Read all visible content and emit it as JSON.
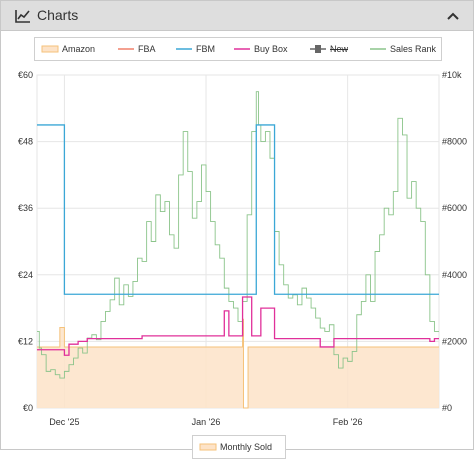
{
  "panel": {
    "title": "Charts",
    "icon": "line-chart-icon",
    "collapse_icon": "chevron-up-icon"
  },
  "legend": [
    {
      "key": "amazon",
      "label": "Amazon",
      "color": "#f5c27a",
      "fill": "#fde3c8",
      "off": false
    },
    {
      "key": "fba",
      "label": "FBA",
      "color": "#f0806a",
      "off": false
    },
    {
      "key": "fbm",
      "label": "FBM",
      "color": "#3ba7d6",
      "off": false
    },
    {
      "key": "buybox",
      "label": "Buy Box",
      "color": "#e0309a",
      "off": false
    },
    {
      "key": "new",
      "label": "New",
      "color": "#666666",
      "off": true
    },
    {
      "key": "salesrank",
      "label": "Sales Rank",
      "color": "#8bc48a",
      "off": false
    }
  ],
  "legend2": {
    "label": "Monthly Sold",
    "color": "#f5c27a"
  },
  "chart_data": {
    "type": "line",
    "y_left": {
      "ticks": [
        "€0",
        "€12",
        "€24",
        "€36",
        "€48",
        "€60"
      ],
      "values": [
        0,
        12,
        24,
        36,
        48,
        60
      ],
      "ylim": [
        0,
        60
      ]
    },
    "y_right": {
      "ticks": [
        "#0",
        "#2000",
        "#4000",
        "#6000",
        "#8000",
        "#10k"
      ],
      "values": [
        0,
        2000,
        4000,
        6000,
        8000,
        10000
      ],
      "ylim": [
        0,
        10000
      ]
    },
    "x_ticks": [
      {
        "label": "Dec '25",
        "day": 6
      },
      {
        "label": "Jan '26",
        "day": 37
      },
      {
        "label": "Feb '26",
        "day": 68
      }
    ],
    "xlim": [
      0,
      88
    ],
    "grid": true,
    "series": [
      {
        "key": "amazon",
        "axis": "left",
        "step": true,
        "points": [
          [
            0,
            11
          ],
          [
            5,
            11
          ],
          [
            5,
            14.5
          ],
          [
            6,
            14.5
          ],
          [
            6,
            11
          ],
          [
            45,
            11
          ],
          [
            45,
            16
          ],
          [
            45.2,
            16
          ],
          [
            45.2,
            0
          ],
          [
            46.2,
            0
          ],
          [
            46.2,
            11
          ],
          [
            88,
            11
          ]
        ]
      },
      {
        "key": "fbm",
        "axis": "left",
        "step": true,
        "points": [
          [
            0,
            51
          ],
          [
            6,
            51
          ],
          [
            6,
            20.5
          ],
          [
            48,
            20.5
          ],
          [
            48,
            51
          ],
          [
            52,
            51
          ],
          [
            52,
            20.5
          ],
          [
            88,
            20.5
          ]
        ]
      },
      {
        "key": "buybox",
        "axis": "left",
        "step": true,
        "points": [
          [
            0,
            10.5
          ],
          [
            6,
            10.5
          ],
          [
            6,
            9.5
          ],
          [
            7,
            9.5
          ],
          [
            7,
            11.5
          ],
          [
            9,
            11.5
          ],
          [
            9,
            12
          ],
          [
            11,
            12
          ],
          [
            11,
            12.5
          ],
          [
            23,
            12.5
          ],
          [
            23,
            13
          ],
          [
            41,
            13
          ],
          [
            41,
            17.5
          ],
          [
            42,
            17.5
          ],
          [
            42,
            13
          ],
          [
            45,
            13
          ],
          [
            45,
            20
          ],
          [
            47,
            20
          ],
          [
            47,
            13
          ],
          [
            49,
            13
          ],
          [
            49,
            18
          ],
          [
            52,
            18
          ],
          [
            52,
            12.5
          ],
          [
            62,
            12.5
          ],
          [
            62,
            11
          ],
          [
            65,
            11
          ],
          [
            65,
            12.5
          ],
          [
            86,
            12.5
          ],
          [
            86,
            12
          ],
          [
            87,
            12
          ],
          [
            87,
            12.5
          ],
          [
            88,
            12.5
          ]
        ]
      },
      {
        "key": "salesrank",
        "axis": "right",
        "step": true,
        "points": [
          [
            0,
            2300
          ],
          [
            0.5,
            1800
          ],
          [
            1,
            1600
          ],
          [
            2,
            1100
          ],
          [
            3,
            1150
          ],
          [
            4,
            1000
          ],
          [
            5,
            900
          ],
          [
            6,
            1100
          ],
          [
            7,
            1300
          ],
          [
            8,
            1500
          ],
          [
            9,
            1800
          ],
          [
            10,
            1650
          ],
          [
            11,
            2100
          ],
          [
            12,
            2200
          ],
          [
            13,
            2050
          ],
          [
            14,
            2600
          ],
          [
            15,
            2900
          ],
          [
            16,
            3250
          ],
          [
            17,
            3900
          ],
          [
            18,
            3100
          ],
          [
            19,
            3700
          ],
          [
            20,
            3350
          ],
          [
            21,
            3800
          ],
          [
            22,
            4500
          ],
          [
            23,
            4400
          ],
          [
            24,
            5600
          ],
          [
            25,
            5000
          ],
          [
            26,
            6400
          ],
          [
            27,
            5900
          ],
          [
            28,
            6200
          ],
          [
            29,
            5200
          ],
          [
            30,
            4800
          ],
          [
            31,
            7000
          ],
          [
            32,
            8300
          ],
          [
            33,
            7100
          ],
          [
            34,
            5700
          ],
          [
            35,
            6200
          ],
          [
            36,
            7300
          ],
          [
            37,
            6500
          ],
          [
            38,
            5600
          ],
          [
            39,
            4900
          ],
          [
            40,
            4500
          ],
          [
            41,
            3600
          ],
          [
            42,
            3200
          ],
          [
            43,
            3000
          ],
          [
            44,
            2600
          ],
          [
            45,
            3200
          ],
          [
            46,
            5800
          ],
          [
            47,
            8300
          ],
          [
            48,
            9500
          ],
          [
            48.5,
            8500
          ],
          [
            49,
            8000
          ],
          [
            50,
            8300
          ],
          [
            51,
            7500
          ],
          [
            52,
            5300
          ],
          [
            53,
            4300
          ],
          [
            54,
            3700
          ],
          [
            55,
            3300
          ],
          [
            56,
            3400
          ],
          [
            57,
            3100
          ],
          [
            58,
            3600
          ],
          [
            59,
            3300
          ],
          [
            60,
            3000
          ],
          [
            61,
            2700
          ],
          [
            62,
            2400
          ],
          [
            63,
            2300
          ],
          [
            64,
            2500
          ],
          [
            65,
            1600
          ],
          [
            66,
            1200
          ],
          [
            67,
            1500
          ],
          [
            68,
            1400
          ],
          [
            69,
            1700
          ],
          [
            70,
            2800
          ],
          [
            71,
            3200
          ],
          [
            72,
            4000
          ],
          [
            73,
            3200
          ],
          [
            74,
            4700
          ],
          [
            75,
            5200
          ],
          [
            76,
            6000
          ],
          [
            77,
            5800
          ],
          [
            78,
            6500
          ],
          [
            79,
            8700
          ],
          [
            80,
            8200
          ],
          [
            81,
            6300
          ],
          [
            82,
            6800
          ],
          [
            83,
            6000
          ],
          [
            84,
            5600
          ],
          [
            85,
            4000
          ],
          [
            86,
            2600
          ],
          [
            87,
            2300
          ],
          [
            88,
            2300
          ]
        ]
      }
    ]
  }
}
